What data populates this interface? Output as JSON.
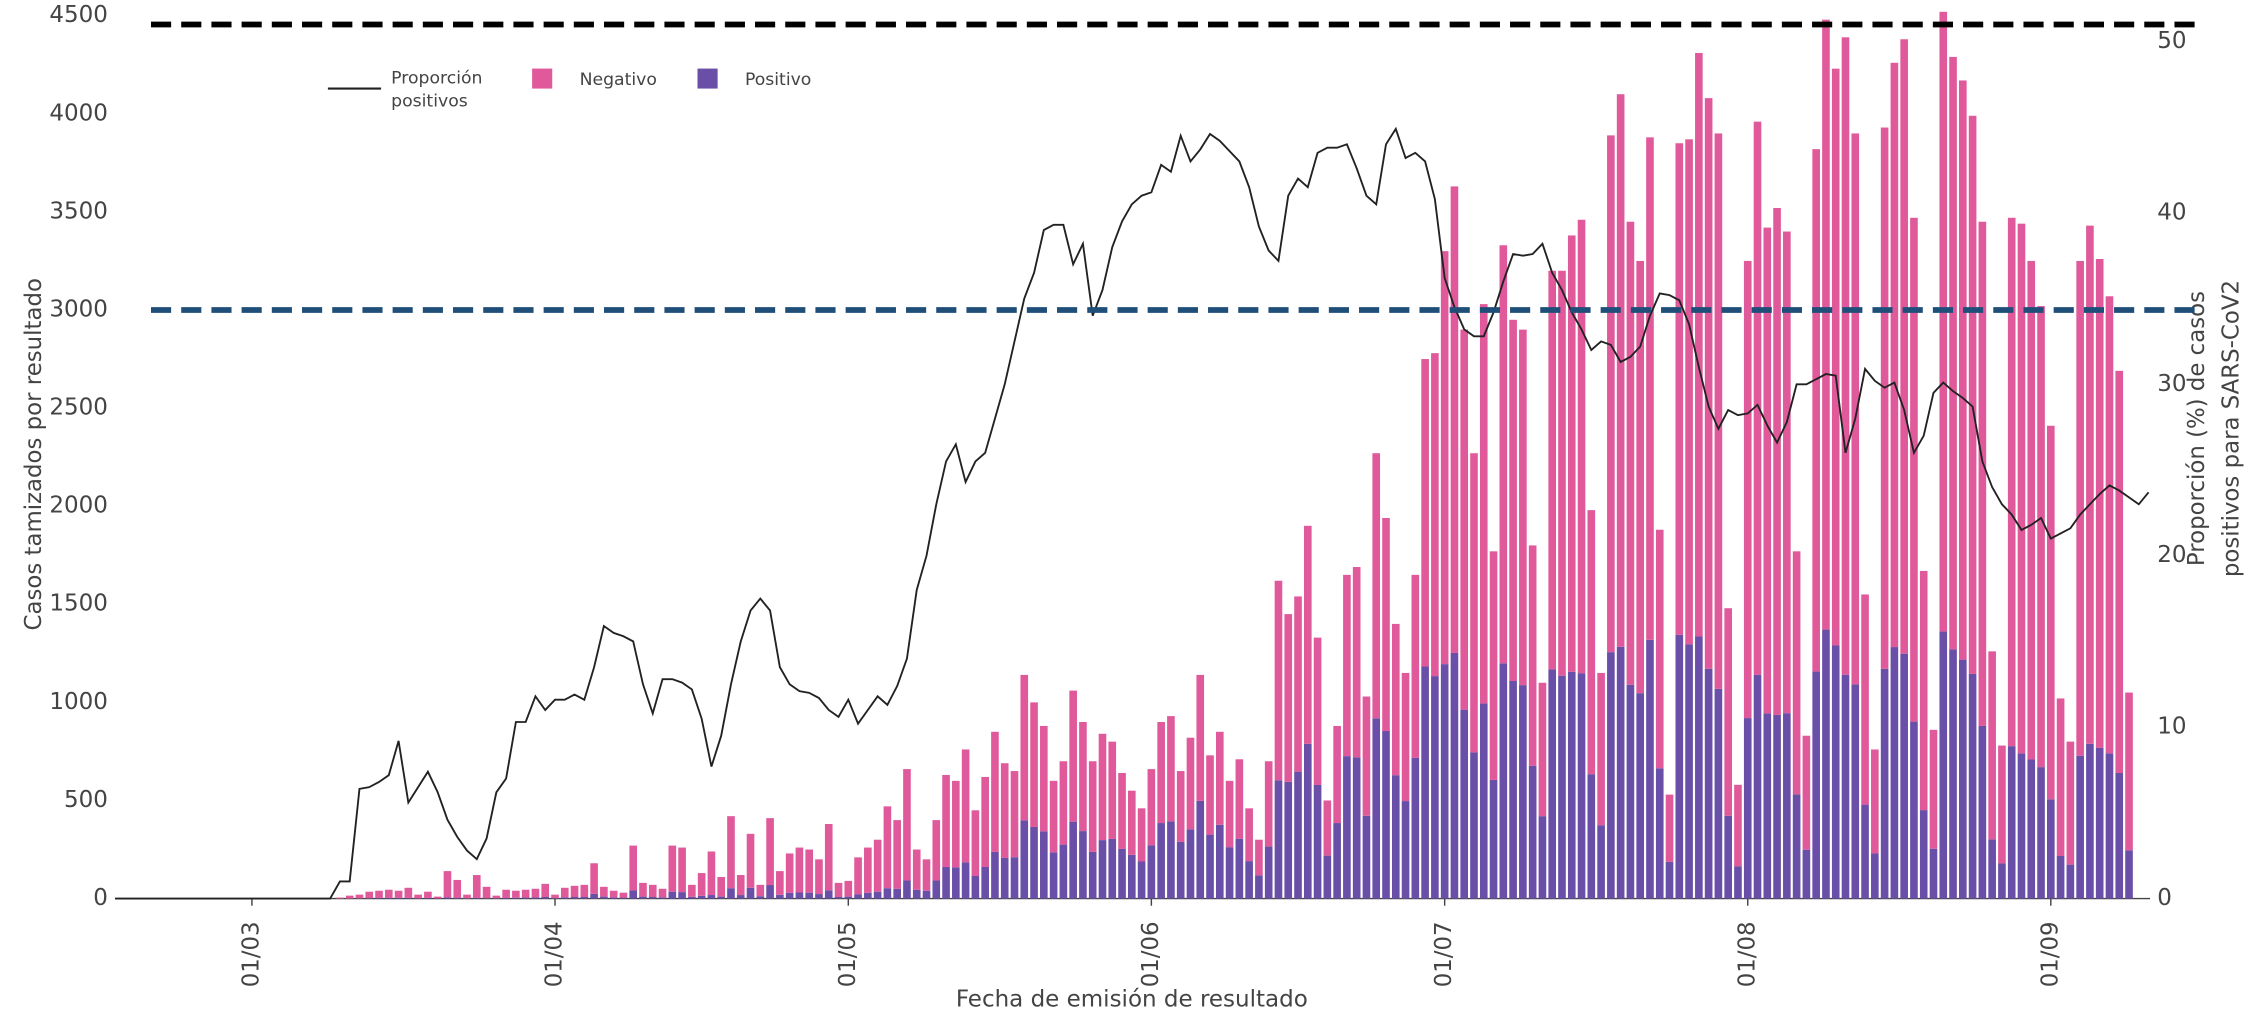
{
  "chart_data": {
    "type": "bar",
    "ylabel": "Casos tamizados por resultado",
    "y2label": [
      "Proporción (%) de casos",
      "positivos para SARS-CoV2"
    ],
    "xlabel": "Fecha de emisión de resultado",
    "ylim": [
      0,
      4500
    ],
    "yticks": [
      0,
      500,
      1000,
      1500,
      2000,
      2500,
      3000,
      3500,
      4000,
      4500
    ],
    "y2lim": [
      0,
      51.5
    ],
    "y2ticks": [
      0,
      10,
      20,
      30,
      40,
      50
    ],
    "xticks": [
      "01/03",
      "01/04",
      "01/05",
      "01/06",
      "01/07",
      "01/08",
      "01/09"
    ],
    "stacked": true,
    "reference_lines": [
      {
        "value": 4455,
        "color": "#000000"
      },
      {
        "value": 3000,
        "color": "#1f4e79"
      }
    ],
    "x": [
      "16/02",
      "17/02",
      "18/02",
      "19/02",
      "20/02",
      "21/02",
      "22/02",
      "23/02",
      "24/02",
      "25/02",
      "26/02",
      "27/02",
      "28/02",
      "29/02",
      "01/03",
      "02/03",
      "03/03",
      "04/03",
      "05/03",
      "06/03",
      "07/03",
      "08/03",
      "09/03",
      "10/03",
      "11/03",
      "12/03",
      "13/03",
      "14/03",
      "15/03",
      "16/03",
      "17/03",
      "18/03",
      "19/03",
      "20/03",
      "21/03",
      "22/03",
      "23/03",
      "24/03",
      "25/03",
      "26/03",
      "27/03",
      "28/03",
      "29/03",
      "30/03",
      "31/03",
      "01/04",
      "02/04",
      "03/04",
      "04/04",
      "05/04",
      "06/04",
      "07/04",
      "08/04",
      "09/04",
      "10/04",
      "11/04",
      "12/04",
      "13/04",
      "14/04",
      "15/04",
      "16/04",
      "17/04",
      "18/04",
      "19/04",
      "20/04",
      "21/04",
      "22/04",
      "23/04",
      "24/04",
      "25/04",
      "26/04",
      "27/04",
      "28/04",
      "29/04",
      "30/04",
      "01/05",
      "02/05",
      "03/05",
      "04/05",
      "05/05",
      "06/05",
      "07/05",
      "08/05",
      "09/05",
      "10/05",
      "11/05",
      "12/05",
      "13/05",
      "14/05",
      "15/05",
      "16/05",
      "17/05",
      "18/05",
      "19/05",
      "20/05",
      "21/05",
      "22/05",
      "23/05",
      "24/05",
      "25/05",
      "26/05",
      "27/05",
      "28/05",
      "29/05",
      "30/05",
      "31/05",
      "01/06",
      "02/06",
      "03/06",
      "04/06",
      "05/06",
      "06/06",
      "07/06",
      "08/06",
      "09/06",
      "10/06",
      "11/06",
      "12/06",
      "13/06",
      "14/06",
      "15/06",
      "16/06",
      "17/06",
      "18/06",
      "19/06",
      "20/06",
      "21/06",
      "22/06",
      "23/06",
      "24/06",
      "25/06",
      "26/06",
      "27/06",
      "28/06",
      "29/06",
      "30/06",
      "01/07",
      "02/07",
      "03/07",
      "04/07",
      "05/07",
      "06/07",
      "07/07",
      "08/07",
      "09/07",
      "10/07",
      "11/07",
      "12/07",
      "13/07",
      "14/07",
      "15/07",
      "16/07",
      "17/07",
      "18/07",
      "19/07",
      "20/07",
      "21/07",
      "22/07",
      "23/07",
      "24/07",
      "25/07",
      "26/07",
      "27/07",
      "28/07",
      "29/07",
      "30/07",
      "31/07",
      "01/08",
      "02/08",
      "03/08",
      "04/08",
      "05/08",
      "06/08",
      "07/08",
      "08/08",
      "09/08",
      "10/08",
      "11/08",
      "12/08",
      "13/08",
      "14/08",
      "15/08",
      "16/08",
      "17/08",
      "18/08",
      "19/08",
      "20/08",
      "21/08",
      "22/08",
      "23/08",
      "24/08",
      "25/08",
      "26/08",
      "27/08",
      "28/08",
      "29/08",
      "30/08",
      "31/08",
      "01/09",
      "02/09",
      "03/09",
      "04/09",
      "05/09",
      "06/09",
      "07/09",
      "08/09",
      "09/09",
      "10/09",
      "11/09"
    ],
    "series": [
      {
        "name": "Positivo",
        "type": "bar",
        "color": "#6a4fa8",
        "values": [
          0,
          0,
          0,
          0,
          0,
          0,
          0,
          0,
          0,
          0,
          0,
          0,
          0,
          0,
          0,
          0,
          0,
          0,
          0,
          0,
          0,
          0,
          0,
          0,
          0,
          1,
          2,
          3,
          3,
          4,
          3,
          1,
          3,
          1,
          6,
          3,
          1,
          3,
          2,
          1,
          3,
          4,
          5,
          6,
          8,
          2,
          6,
          8,
          8,
          24,
          10,
          6,
          5,
          41,
          10,
          8,
          6,
          35,
          33,
          9,
          14,
          18,
          10,
          53,
          18,
          55,
          12,
          69,
          19,
          29,
          31,
          30,
          23,
          42,
          8,
          10,
          21,
          29,
          35,
          53,
          50,
          92,
          45,
          40,
          92,
          161,
          159,
          185,
          115,
          161,
          238,
          207,
          211,
          399,
          365,
          343,
          236,
          275,
          392,
          344,
          238,
          298,
          304,
          253,
          223,
          189,
          272,
          385,
          394,
          289,
          353,
          498,
          326,
          376,
          262,
          305,
          191,
          118,
          265,
          603,
          595,
          647,
          789,
          579,
          219,
          385,
          726,
          720,
          422,
          919,
          854,
          629,
          497,
          718,
          1183,
          1134,
          1195,
          1252,
          963,
          745,
          994,
          605,
          1199,
          1109,
          1088,
          677,
          420,
          1168,
          1136,
          1156,
          1149,
          634,
          374,
          1256,
          1283,
          1090,
          1047,
          1319,
          664,
          187,
          1344,
          1296,
          1336,
          1171,
          1069,
          422,
          164,
          920,
          1140,
          944,
          936,
          945,
          531,
          249,
          1157,
          1371,
          1290,
          1141,
          1092,
          479,
          230,
          1171,
          1282,
          1248,
          902,
          451,
          254,
          1361,
          1270,
          1218,
          1145,
          880,
          302,
          179,
          777,
          740,
          709,
          670,
          506,
          217,
          173,
          728,
          789,
          769,
          740,
          640,
          246,
          null,
          null
        ]
      },
      {
        "name": "Negativo",
        "type": "bar",
        "color": "#e05a9b",
        "values": [
          0,
          0,
          0,
          0,
          0,
          0,
          0,
          0,
          0,
          0,
          0,
          0,
          0,
          0,
          0,
          0,
          0,
          0,
          0,
          0,
          0,
          0,
          0,
          5,
          15,
          19,
          33,
          37,
          42,
          36,
          52,
          19,
          32,
          9,
          134,
          92,
          19,
          117,
          58,
          14,
          42,
          36,
          40,
          44,
          67,
          18,
          49,
          57,
          62,
          156,
          50,
          34,
          25,
          229,
          70,
          62,
          44,
          235,
          227,
          61,
          116,
          222,
          100,
          367,
          102,
          275,
          58,
          341,
          121,
          201,
          229,
          220,
          177,
          338,
          72,
          80,
          189,
          231,
          265,
          417,
          350,
          568,
          205,
          160,
          308,
          469,
          441,
          575,
          335,
          459,
          612,
          483,
          439,
          741,
          635,
          537,
          364,
          425,
          668,
          556,
          462,
          542,
          496,
          387,
          327,
          271,
          388,
          515,
          536,
          361,
          467,
          642,
          404,
          474,
          338,
          405,
          269,
          182,
          435,
          1017,
          855,
          893,
          1111,
          751,
          281,
          495,
          924,
          970,
          608,
          1351,
          1086,
          771,
          653,
          932,
          1567,
          1646,
          2105,
          2378,
          1937,
          1525,
          2036,
          1165,
          2131,
          1841,
          1812,
          1123,
          680,
          2032,
          2064,
          2224,
          2311,
          1346,
          776,
          2634,
          2817,
          2360,
          2203,
          2561,
          1216,
          343,
          2506,
          2574,
          2974,
          2909,
          2831,
          1058,
          416,
          2330,
          2820,
          2476,
          2584,
          2455,
          1239,
          581,
          2663,
          3109,
          2940,
          3249,
          2808,
          1071,
          530,
          2759,
          2978,
          3132,
          2568,
          1219,
          606,
          3159,
          3020,
          2952,
          2845,
          2570,
          958,
          601,
          2693,
          2700,
          2541,
          2350,
          1904,
          803,
          627,
          2522,
          2641,
          2491,
          2330,
          2050,
          804,
          null,
          null
        ]
      },
      {
        "name": "Proporción positivos",
        "type": "line",
        "axis": "y2",
        "color": "#222222",
        "values": [
          0,
          0,
          0,
          0,
          0,
          0,
          0,
          0,
          0,
          0,
          0,
          0,
          0,
          0,
          0,
          0,
          0,
          0,
          0,
          0,
          0,
          0,
          0,
          1,
          1,
          6.4,
          6.5,
          6.8,
          7.2,
          9.2,
          5.6,
          6.5,
          7.4,
          6.2,
          4.6,
          3.6,
          2.8,
          2.3,
          3.5,
          6.2,
          7,
          10.3,
          10.3,
          11.8,
          11,
          11.6,
          11.6,
          11.9,
          11.6,
          13.5,
          15.9,
          15.5,
          15.3,
          15,
          12.5,
          10.8,
          12.8,
          12.8,
          12.6,
          12.2,
          10.5,
          7.7,
          9.5,
          12.5,
          15,
          16.8,
          17.5,
          16.8,
          13.5,
          12.5,
          12.1,
          12,
          11.7,
          11,
          10.6,
          11.6,
          10.2,
          11,
          11.8,
          11.3,
          12.4,
          14,
          18,
          20,
          23,
          25.5,
          26.5,
          24.3,
          25.5,
          26,
          28,
          30,
          32.5,
          35,
          36.5,
          39,
          39.3,
          39.3,
          37,
          38.2,
          34,
          35.5,
          38,
          39.5,
          40.5,
          41,
          41.2,
          42.8,
          42.4,
          44.5,
          43,
          43.7,
          44.6,
          44.2,
          43.6,
          43,
          41.5,
          39.2,
          37.8,
          37.2,
          41,
          42,
          41.5,
          43.5,
          43.8,
          43.8,
          44,
          42.6,
          41,
          40.5,
          44,
          44.9,
          43.2,
          43.5,
          43,
          40.8,
          36.2,
          34.5,
          33.2,
          32.8,
          32.8,
          34.2,
          36,
          37.6,
          37.5,
          37.6,
          38.2,
          36.5,
          35.5,
          34.2,
          33.2,
          32,
          32.5,
          32.3,
          31.3,
          31.6,
          32.2,
          34,
          35.3,
          35.2,
          34.9,
          33.5,
          31,
          28.7,
          27.4,
          28.5,
          28.2,
          28.3,
          28.8,
          27.6,
          26.6,
          27.8,
          30,
          30,
          30.3,
          30.6,
          30.5,
          26,
          28,
          30.9,
          30.2,
          29.8,
          30.1,
          28.5,
          26,
          27,
          29.5,
          30.1,
          29.6,
          29.2,
          28.7,
          25.5,
          24,
          23,
          22.4,
          21.5,
          21.8,
          22.2,
          21,
          21.3,
          21.6,
          22.4,
          23,
          23.6,
          24.1,
          23.8,
          23.4,
          23,
          23.7
        ]
      }
    ],
    "legend_order": [
      2,
      1,
      0
    ]
  }
}
